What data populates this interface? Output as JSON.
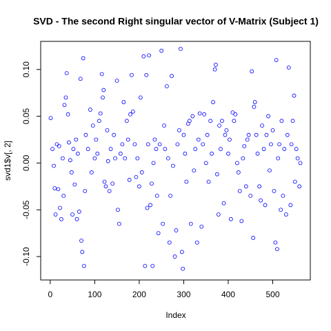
{
  "chart_data": {
    "type": "scatter",
    "title": "SVD - The second Right singular vector of V-Matrix (Subject 1)",
    "x_label": "Index",
    "y_label": "svd1$v[, 2]",
    "color": "#0000ff",
    "xlim": [
      -21.44,
      584.44
    ],
    "ylim": [
      -0.125,
      0.13
    ],
    "xticks": [
      0,
      100,
      200,
      300,
      400,
      500
    ],
    "yticks": [
      {
        "value": -0.1,
        "label": "-0.10"
      },
      {
        "value": -0.05,
        "label": "-0.05"
      },
      {
        "value": 0,
        "label": "0.00"
      },
      {
        "value": 0.05,
        "label": "0.05"
      },
      {
        "value": 0.1,
        "label": "0.10"
      }
    ],
    "x": [
      1,
      5,
      8,
      10,
      12,
      15,
      18,
      20,
      22,
      25,
      28,
      30,
      32,
      35,
      37,
      40,
      42,
      45,
      48,
      50,
      52,
      55,
      58,
      60,
      62,
      65,
      68,
      70,
      72,
      74,
      76,
      78,
      80,
      85,
      90,
      93,
      96,
      100,
      103,
      106,
      110,
      113,
      116,
      118,
      120,
      122,
      125,
      128,
      130,
      133,
      136,
      140,
      143,
      146,
      150,
      152,
      155,
      158,
      162,
      165,
      168,
      172,
      175,
      178,
      180,
      183,
      186,
      190,
      193,
      196,
      200,
      203,
      206,
      210,
      213,
      216,
      218,
      220,
      222,
      225,
      228,
      230,
      232,
      235,
      238,
      240,
      243,
      246,
      250,
      253,
      256,
      258,
      262,
      265,
      268,
      270,
      273,
      276,
      280,
      283,
      286,
      290,
      293,
      296,
      298,
      300,
      303,
      306,
      310,
      313,
      316,
      320,
      323,
      326,
      330,
      333,
      336,
      340,
      343,
      346,
      350,
      353,
      356,
      360,
      363,
      366,
      370,
      372,
      375,
      378,
      380,
      383,
      386,
      390,
      393,
      396,
      400,
      403,
      406,
      410,
      413,
      416,
      420,
      423,
      426,
      430,
      433,
      436,
      440,
      443,
      446,
      450,
      453,
      456,
      458,
      460,
      463,
      466,
      470,
      473,
      476,
      480,
      483,
      486,
      490,
      493,
      496,
      500,
      503,
      506,
      508,
      510,
      512,
      515,
      518,
      520,
      523,
      526,
      530,
      533,
      536,
      540,
      542,
      545,
      548,
      550,
      553,
      556,
      560,
      562
    ],
    "values": [
      0.048,
      0.015,
      -0.003,
      -0.027,
      -0.055,
      0.02,
      -0.028,
      0.018,
      -0.048,
      -0.06,
      0.005,
      -0.035,
      0.062,
      0.07,
      0.096,
      0.052,
      0.022,
      0.003,
      -0.01,
      -0.055,
      0.015,
      -0.023,
      0.025,
      -0.06,
      0.01,
      -0.052,
      0.09,
      -0.083,
      -0.095,
      0.112,
      -0.11,
      -0.03,
      0.03,
      0.015,
      0.057,
      -0.01,
      0.04,
      0.005,
      0.025,
      0.01,
      0.045,
      0.053,
      0.095,
      0.07,
      0.078,
      -0.02,
      -0.025,
      0.035,
      0.002,
      -0.03,
      0.015,
      -0.022,
      0.03,
      0.005,
      0.088,
      -0.05,
      -0.065,
      0.01,
      0.02,
      0.065,
      0.005,
      0.045,
      0.025,
      -0.018,
      0.052,
      0.094,
      0.055,
      0.02,
      -0.015,
      0.005,
      -0.025,
      0.07,
      -0.01,
      0.114,
      -0.11,
      0.094,
      -0.048,
      0.02,
      0.115,
      -0.045,
      -0.022,
      -0.11,
      0.0,
      0.025,
      0.015,
      -0.035,
      -0.075,
      0.02,
      0.12,
      -0.065,
      0.04,
      0.015,
      0.082,
      0.005,
      -0.085,
      -0.035,
      0.093,
      -0.003,
      -0.1,
      -0.072,
      0.02,
      0.035,
      0.122,
      -0.095,
      -0.113,
      0.03,
      0.01,
      -0.02,
      0.042,
      0.045,
      -0.065,
      0.05,
      -0.008,
      0.015,
      -0.085,
      0.025,
      0.053,
      -0.068,
      0.02,
      0.052,
      0.0,
      0.03,
      -0.02,
      0.045,
      0.01,
      0.065,
      0.1,
      0.105,
      -0.012,
      -0.055,
      0.04,
      0.015,
      0.045,
      -0.043,
      0.03,
      0.035,
      0.01,
      0.025,
      -0.06,
      0.054,
      0.045,
      0.052,
      0.0,
      -0.01,
      -0.03,
      -0.062,
      0.005,
      0.018,
      -0.025,
      0.025,
      0.03,
      -0.035,
      0.098,
      -0.08,
      0.06,
      0.065,
      0.03,
      0.01,
      -0.025,
      -0.04,
      0.04,
      0.015,
      -0.045,
      0.03,
      0.05,
      -0.008,
      0.02,
      0.035,
      -0.03,
      -0.085,
      0.11,
      -0.092,
      0.005,
      0.02,
      -0.05,
      0.045,
      -0.035,
      0.015,
      -0.055,
      0.03,
      0.102,
      -0.045,
      0.02,
      0.045,
      0.072,
      -0.02,
      0.015,
      0.005,
      -0.025,
      0.0
    ]
  }
}
